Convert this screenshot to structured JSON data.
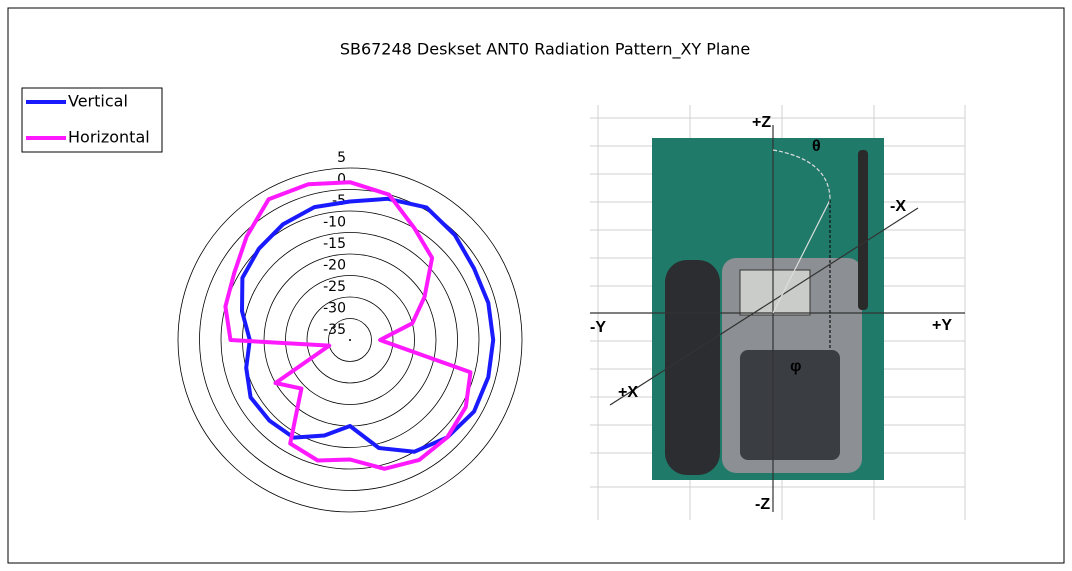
{
  "chart_data": {
    "type": "polar",
    "title": "SB67248 Deskset ANT0 Radiation Pattern_XY Plane",
    "categories": [
      null,
      null,
      null,
      null,
      null,
      null,
      null,
      null,
      null,
      null,
      null,
      null,
      null,
      null,
      null,
      null,
      null,
      null,
      null,
      null,
      null,
      null,
      null,
      null
    ],
    "series": [
      {
        "name": "Vertical",
        "color": "#1a1aff",
        "values": [
          -2.8,
          -1,
          0.6,
          -0.5,
          -1.7,
          -1.7,
          -1.7,
          -1.7,
          -1.7,
          -3,
          -5,
          -9,
          -15,
          -12,
          -8.8,
          -8.5,
          -8.3,
          -10,
          -11.7,
          -9,
          -6.1,
          -5,
          -3.9,
          -3
        ]
      },
      {
        "name": "Horizontal",
        "color": "#ff19ff",
        "values": [
          1.7,
          0,
          -5,
          -8,
          -15,
          -20,
          -28,
          -6,
          -3.9,
          -3,
          -2.8,
          -4,
          -7.2,
          -6,
          -7.2,
          -19,
          -15,
          -30,
          -7.2,
          -5,
          -3.9,
          -1,
          2.8,
          2.5
        ]
      }
    ],
    "rlim": [
      -35,
      5
    ],
    "rticks": [
      5,
      0,
      -5,
      -10,
      -15,
      -20,
      -25,
      -30,
      -35
    ],
    "legend": "top-left"
  },
  "image_labels": {
    "z_top": "+Z",
    "z_bottom": "-Z",
    "y_left": "-Y",
    "y_right": "+Y",
    "x_top": "-X",
    "x_bottom": "+X",
    "theta": "θ",
    "phi": "φ"
  }
}
